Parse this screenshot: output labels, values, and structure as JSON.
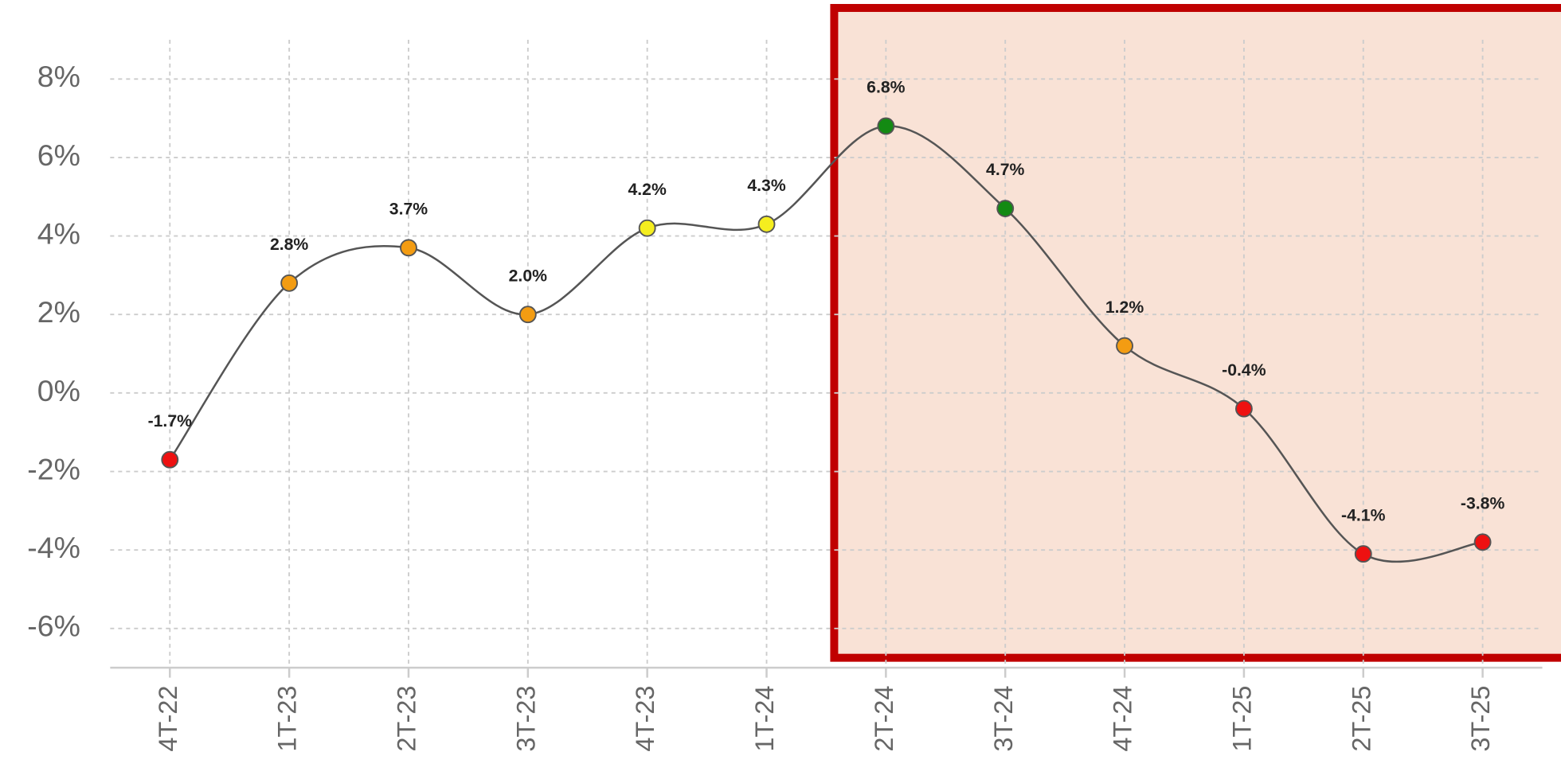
{
  "chart_data": {
    "type": "line",
    "categories": [
      "4T-22",
      "1T-23",
      "2T-23",
      "3T-23",
      "4T-23",
      "1T-24",
      "2T-24",
      "3T-24",
      "4T-24",
      "1T-25",
      "2T-25",
      "3T-25"
    ],
    "values": [
      -1.7,
      2.8,
      3.7,
      2.0,
      4.2,
      4.3,
      6.8,
      4.7,
      1.2,
      -0.4,
      -4.1,
      -3.8
    ],
    "value_labels": [
      "-1.7%",
      "2.8%",
      "3.7%",
      "2.0%",
      "4.2%",
      "4.3%",
      "6.8%",
      "4.7%",
      "1.2%",
      "-0.4%",
      "-4.1%",
      "-3.8%"
    ],
    "point_colors": [
      "#ee1111",
      "#f39c12",
      "#f39c12",
      "#f39c12",
      "#f5ee1f",
      "#f5ee1f",
      "#138a13",
      "#138a13",
      "#f39c12",
      "#ee1111",
      "#ee1111",
      "#ee1111"
    ],
    "color": "#555555",
    "ylim": [
      -7,
      9
    ],
    "yticks": [
      {
        "value": 8,
        "label": "8%"
      },
      {
        "value": 6,
        "label": "6%"
      },
      {
        "value": 4,
        "label": "4%"
      },
      {
        "value": 2,
        "label": "2%"
      },
      {
        "value": 0,
        "label": "0%"
      },
      {
        "value": -2,
        "label": "-2%"
      },
      {
        "value": -4,
        "label": "-4%"
      },
      {
        "value": -6,
        "label": "-6%"
      }
    ],
    "grid": true,
    "smooth": true
  }
}
